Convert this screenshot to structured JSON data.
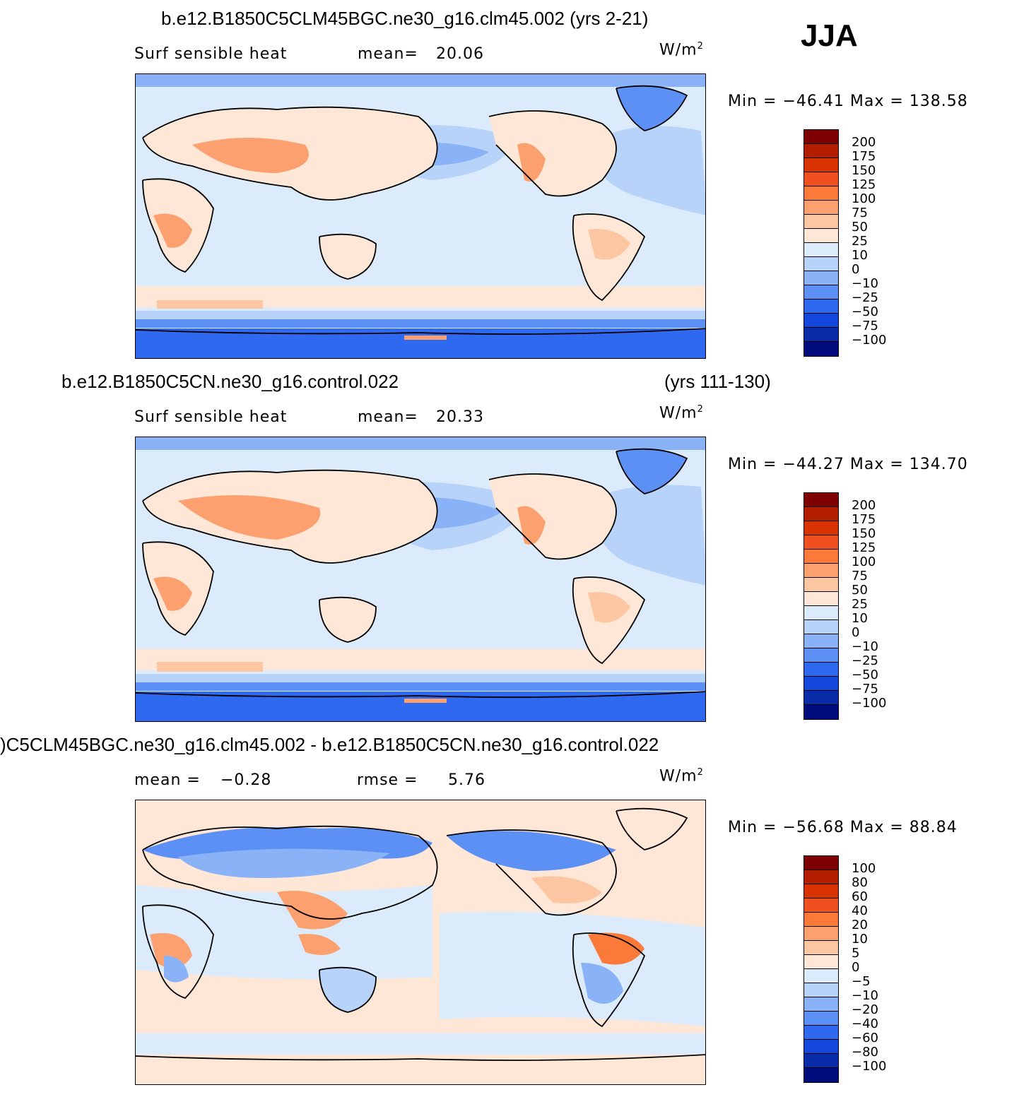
{
  "season": "JJA",
  "units": "W/m",
  "units_sup": "2",
  "panels": [
    {
      "title_left": "b.e12.B1850C5CLM45BGC.ne30_g16.clm45.002 (yrs 2-21)",
      "title_right": "",
      "sub_left": "Surf sensible heat",
      "sub_mid_label": "mean=",
      "sub_mid_value": "20.06",
      "sub_r_label": "",
      "sub_r_value": "",
      "minmax": "Min = −46.41 Max = 138.58",
      "colorbar": {
        "labels": [
          "200",
          "175",
          "150",
          "125",
          "100",
          "75",
          "50",
          "25",
          "10",
          "0",
          "−10",
          "−25",
          "−50",
          "−75",
          "−100"
        ],
        "colors": [
          "#7f0000",
          "#b31d00",
          "#d83200",
          "#f05020",
          "#fb7a3a",
          "#fca06f",
          "#fdc6a2",
          "#fee7d6",
          "#dcebfb",
          "#b7d3fa",
          "#8ab3f7",
          "#5d90f4",
          "#2f69f0",
          "#1447db",
          "#0a2ca8",
          "#000c7c"
        ]
      }
    },
    {
      "title_left": "b.e12.B1850C5CN.ne30_g16.control.022",
      "title_right": "(yrs 111-130)",
      "sub_left": "Surf sensible heat",
      "sub_mid_label": "mean=",
      "sub_mid_value": "20.33",
      "sub_r_label": "",
      "sub_r_value": "",
      "minmax": "Min = −44.27 Max = 134.70",
      "colorbar": {
        "labels": [
          "200",
          "175",
          "150",
          "125",
          "100",
          "75",
          "50",
          "25",
          "10",
          "0",
          "−10",
          "−25",
          "−50",
          "−75",
          "−100"
        ],
        "colors": [
          "#7f0000",
          "#b31d00",
          "#d83200",
          "#f05020",
          "#fb7a3a",
          "#fca06f",
          "#fdc6a2",
          "#fee7d6",
          "#dcebfb",
          "#b7d3fa",
          "#8ab3f7",
          "#5d90f4",
          "#2f69f0",
          "#1447db",
          "#0a2ca8",
          "#000c7c"
        ]
      }
    },
    {
      "title_left": ")C5CLM45BGC.ne30_g16.clm45.002 - b.e12.B1850C5CN.ne30_g16.control.022",
      "title_right": "",
      "sub_left": "",
      "sub_mid_label": "mean =",
      "sub_mid_value": "−0.28",
      "sub_r_label": "rmse =",
      "sub_r_value": "5.76",
      "minmax": "Min = −56.68 Max =  88.84",
      "colorbar": {
        "labels": [
          "100",
          "80",
          "60",
          "40",
          "20",
          "10",
          "5",
          "0",
          "−5",
          "−10",
          "−20",
          "−40",
          "−60",
          "−80",
          "−100"
        ],
        "colors": [
          "#7f0000",
          "#b31d00",
          "#d83200",
          "#f05020",
          "#fb7a3a",
          "#fca06f",
          "#fdc6a2",
          "#fee7d6",
          "#dcebfb",
          "#b7d3fa",
          "#8ab3f7",
          "#5d90f4",
          "#2f69f0",
          "#1447db",
          "#0a2ca8",
          "#000c7c"
        ]
      }
    }
  ]
}
